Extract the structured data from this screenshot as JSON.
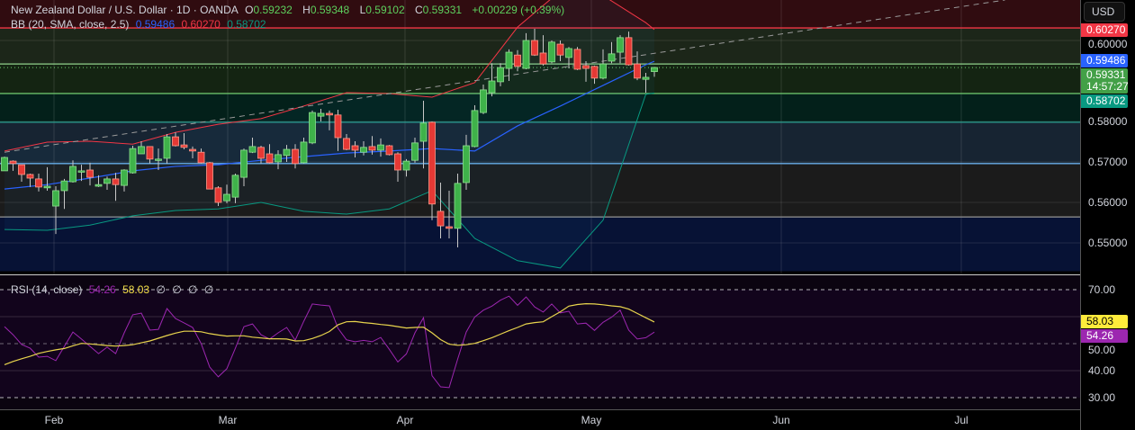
{
  "header": {
    "symbol_line": "New Zealand Dollar / U.S. Dollar · 1D · OANDA",
    "o_label": "O",
    "o": "0.59232",
    "h_label": "H",
    "h": "0.59348",
    "l_label": "L",
    "l": "0.59102",
    "c_label": "C",
    "c": "0.59331",
    "change": "+0.00229 (+0.39%)"
  },
  "bb_legend": {
    "label": "BB (20, SMA, close, 2.5)",
    "basis": "0.59486",
    "upper": "0.60270",
    "lower": "0.58702"
  },
  "rsi_legend": {
    "label": "RSI (14, close)",
    "rsi": "54.26",
    "ma": "58.03",
    "extras": [
      "∅",
      "∅",
      "∅",
      "∅"
    ]
  },
  "price_axis": {
    "currency": "USD",
    "ticks": [
      "0.60000",
      "0.58000",
      "0.57000",
      "0.56000",
      "0.55000"
    ],
    "badges": [
      {
        "value": "0.60270",
        "color": "#f23645"
      },
      {
        "value": "0.59486",
        "color": "#2962ff"
      },
      {
        "value": "0.59331",
        "color": "#43a047",
        "sub": "14:57:27"
      },
      {
        "value": "0.58702",
        "color": "#089981"
      }
    ]
  },
  "rsi_axis": {
    "ticks": [
      "70.00",
      "50.00",
      "40.00",
      "30.00"
    ],
    "badges": [
      {
        "value": "58.03",
        "color": "#ffeb3b",
        "text_color": "#000000"
      },
      {
        "value": "54.26",
        "color": "#9c27b0",
        "text_color": "#ffffff"
      }
    ]
  },
  "time_axis": {
    "labels": [
      "Feb",
      "Mar",
      "Apr",
      "May",
      "Jun",
      "Jul"
    ]
  },
  "colors": {
    "up": "#3fb24a",
    "down": "#e53935",
    "bb_basis": "#2962ff",
    "bb_upper": "#f23645",
    "bb_lower": "#089981",
    "rsi": "#9c27b0",
    "rsi_ma": "#e8d44d"
  },
  "chart_data": [
    {
      "type": "candlestick",
      "title": "New Zealand Dollar / U.S. Dollar · 1D · OANDA",
      "ylim": [
        0.543,
        0.61
      ],
      "ohlc": [
        [
          0.5678,
          0.5713,
          0.5678,
          0.5711
        ],
        [
          0.5702,
          0.5704,
          0.5678,
          0.5696
        ],
        [
          0.5693,
          0.5693,
          0.5651,
          0.5669
        ],
        [
          0.5669,
          0.5671,
          0.5638,
          0.566
        ],
        [
          0.5658,
          0.5671,
          0.5627,
          0.5638
        ],
        [
          0.5636,
          0.5687,
          0.5629,
          0.564
        ],
        [
          0.5591,
          0.564,
          0.5522,
          0.5629
        ],
        [
          0.5629,
          0.5658,
          0.5584,
          0.5653
        ],
        [
          0.5651,
          0.5704,
          0.5649,
          0.5689
        ],
        [
          0.5676,
          0.5693,
          0.5653,
          0.5678
        ],
        [
          0.568,
          0.5698,
          0.5642,
          0.5662
        ],
        [
          0.564,
          0.5667,
          0.5638,
          0.5644
        ],
        [
          0.5647,
          0.5664,
          0.5631,
          0.5658
        ],
        [
          0.5658,
          0.5673,
          0.5604,
          0.5644
        ],
        [
          0.5642,
          0.5682,
          0.5627,
          0.568
        ],
        [
          0.5673,
          0.574,
          0.5671,
          0.5733
        ],
        [
          0.572,
          0.5751,
          0.572,
          0.5738
        ],
        [
          0.5738,
          0.5738,
          0.5696,
          0.5707
        ],
        [
          0.5707,
          0.5733,
          0.568,
          0.5707
        ],
        [
          0.5709,
          0.5769,
          0.5696,
          0.5762
        ],
        [
          0.5762,
          0.5773,
          0.5738,
          0.574
        ],
        [
          0.5742,
          0.5771,
          0.5731,
          0.5736
        ],
        [
          0.5731,
          0.5738,
          0.5709,
          0.5727
        ],
        [
          0.5724,
          0.5733,
          0.5696,
          0.5698
        ],
        [
          0.5698,
          0.57,
          0.5633,
          0.5633
        ],
        [
          0.5636,
          0.564,
          0.5591,
          0.56
        ],
        [
          0.5604,
          0.5644,
          0.5598,
          0.562
        ],
        [
          0.5613,
          0.5671,
          0.5598,
          0.5667
        ],
        [
          0.5662,
          0.5733,
          0.564,
          0.5729
        ],
        [
          0.5724,
          0.576,
          0.5722,
          0.5738
        ],
        [
          0.5736,
          0.574,
          0.5696,
          0.5709
        ],
        [
          0.572,
          0.5744,
          0.5696,
          0.5698
        ],
        [
          0.57,
          0.5729,
          0.5682,
          0.5718
        ],
        [
          0.5716,
          0.5742,
          0.57,
          0.5731
        ],
        [
          0.5731,
          0.5744,
          0.5684,
          0.5696
        ],
        [
          0.5698,
          0.576,
          0.5696,
          0.5749
        ],
        [
          0.5747,
          0.5827,
          0.5744,
          0.5822
        ],
        [
          0.5813,
          0.5831,
          0.58,
          0.582
        ],
        [
          0.582,
          0.5827,
          0.5778,
          0.5816
        ],
        [
          0.5816,
          0.5829,
          0.5727,
          0.576
        ],
        [
          0.5758,
          0.5769,
          0.5729,
          0.5731
        ],
        [
          0.574,
          0.5751,
          0.5711,
          0.5729
        ],
        [
          0.5724,
          0.5751,
          0.5716,
          0.5736
        ],
        [
          0.5738,
          0.5764,
          0.5718,
          0.5729
        ],
        [
          0.5729,
          0.5758,
          0.5713,
          0.5742
        ],
        [
          0.574,
          0.5742,
          0.5716,
          0.5718
        ],
        [
          0.572,
          0.5724,
          0.5651,
          0.568
        ],
        [
          0.568,
          0.5707,
          0.5664,
          0.5702
        ],
        [
          0.5704,
          0.576,
          0.5698,
          0.5747
        ],
        [
          0.5751,
          0.5851,
          0.5684,
          0.5796
        ],
        [
          0.5798,
          0.58,
          0.5556,
          0.5596
        ],
        [
          0.5578,
          0.5649,
          0.5511,
          0.5542
        ],
        [
          0.554,
          0.5629,
          0.5511,
          0.5536
        ],
        [
          0.5536,
          0.5671,
          0.5489,
          0.5647
        ],
        [
          0.5649,
          0.5767,
          0.5631,
          0.574
        ],
        [
          0.5738,
          0.584,
          0.5736,
          0.5827
        ],
        [
          0.5822,
          0.5891,
          0.5818,
          0.5878
        ],
        [
          0.5871,
          0.5944,
          0.5862,
          0.59
        ],
        [
          0.5898,
          0.5944,
          0.5887,
          0.5933
        ],
        [
          0.5931,
          0.5978,
          0.59,
          0.5971
        ],
        [
          0.5964,
          0.5976,
          0.5924,
          0.5936
        ],
        [
          0.5931,
          0.6018,
          0.5929,
          0.6
        ],
        [
          0.6,
          0.6029,
          0.5962,
          0.5964
        ],
        [
          0.5969,
          0.6013,
          0.5938,
          0.5942
        ],
        [
          0.5947,
          0.6,
          0.5944,
          0.5996
        ],
        [
          0.5991,
          0.6,
          0.5949,
          0.5964
        ],
        [
          0.5958,
          0.5984,
          0.5931,
          0.598
        ],
        [
          0.5978,
          0.5984,
          0.5927,
          0.5929
        ],
        [
          0.5938,
          0.5949,
          0.5898,
          0.5931
        ],
        [
          0.5936,
          0.5938,
          0.5893,
          0.5907
        ],
        [
          0.5907,
          0.5978,
          0.5904,
          0.5942
        ],
        [
          0.5949,
          0.5996,
          0.5944,
          0.5967
        ],
        [
          0.5971,
          0.6013,
          0.5944,
          0.6007
        ],
        [
          0.6007,
          0.6022,
          0.5938,
          0.594
        ],
        [
          0.5942,
          0.5973,
          0.5902,
          0.5907
        ],
        [
          0.5904,
          0.592,
          0.5871,
          0.5909
        ],
        [
          0.59232,
          0.59348,
          0.59102,
          0.59331
        ]
      ],
      "bollinger": {
        "bars": [
          1,
          6,
          11,
          16,
          21,
          26,
          31,
          36,
          41,
          46,
          51,
          56,
          61,
          66,
          71,
          76,
          77
        ],
        "upper": [
          0.5727,
          0.5749,
          0.5751,
          0.5744,
          0.5773,
          0.5793,
          0.5807,
          0.5838,
          0.5871,
          0.5869,
          0.586,
          0.5896,
          0.6033,
          0.6122,
          0.6111,
          0.6044,
          0.6027
        ],
        "basis": [
          0.5633,
          0.5644,
          0.566,
          0.5678,
          0.5689,
          0.5693,
          0.5704,
          0.5713,
          0.5722,
          0.5727,
          0.5733,
          0.5727,
          0.5789,
          0.5838,
          0.5889,
          0.594,
          0.59486
        ],
        "lower": [
          0.5533,
          0.5531,
          0.5544,
          0.5567,
          0.558,
          0.5584,
          0.56,
          0.5578,
          0.5571,
          0.5584,
          0.5629,
          0.5511,
          0.5456,
          0.5438,
          0.5556,
          0.5867,
          0.58702
        ]
      },
      "price_zones": [
        {
          "top": 0.61,
          "bottom": 0.6031,
          "color": "#300c10"
        },
        {
          "top": 0.6031,
          "bottom": 0.5942,
          "color": "#1c2619"
        },
        {
          "top": 0.5942,
          "bottom": 0.5869,
          "color": "#142412"
        },
        {
          "top": 0.5869,
          "bottom": 0.5798,
          "color": "#03201a"
        },
        {
          "top": 0.5798,
          "bottom": 0.5696,
          "color": "#172432"
        },
        {
          "top": 0.5696,
          "bottom": 0.5564,
          "color": "#1b1b1b"
        },
        {
          "top": 0.5564,
          "bottom": 0.543,
          "color": "#071235"
        }
      ],
      "horizontal_levels": [
        {
          "price": 0.6031,
          "color": "#f23645"
        },
        {
          "price": 0.5942,
          "color": "#90d08a"
        },
        {
          "price": 0.5869,
          "color": "#6abf69"
        },
        {
          "price": 0.5798,
          "color": "#2a9d8f"
        },
        {
          "price": 0.5696,
          "color": "#6aaee8"
        },
        {
          "price": 0.5564,
          "color": "#8a8a8a"
        }
      ],
      "trendline": {
        "from": [
          1,
          0.5724
        ],
        "to": [
          118,
          0.61
        ]
      },
      "last_price": 0.59331
    },
    {
      "type": "line",
      "title": "RSI (14, close)",
      "ylim": [
        22,
        75
      ],
      "levels": {
        "upper": 70,
        "middle": 50,
        "lower": 30
      },
      "series": [
        {
          "name": "RSI",
          "values": [
            56.3,
            53.3,
            49.7,
            48.3,
            45,
            45.3,
            43.7,
            49,
            54.3,
            51.7,
            49,
            46.3,
            48.7,
            46.3,
            54,
            60.7,
            61.3,
            55,
            55.3,
            63,
            59.3,
            57.7,
            56,
            50,
            41.3,
            37.7,
            40.7,
            48.3,
            56.3,
            57.3,
            53.3,
            51.7,
            54,
            56,
            51.3,
            58.3,
            64.7,
            64.3,
            64,
            55.7,
            51.4,
            50.7,
            51.2,
            50.7,
            52.3,
            47.9,
            43.2,
            46.2,
            54,
            59.6,
            38.1,
            34,
            33.7,
            44.3,
            54.3,
            59.9,
            62.4,
            63.9,
            66.1,
            67.6,
            64.2,
            67.3,
            63.6,
            61.7,
            64.7,
            61.4,
            62,
            57.3,
            57.6,
            54.9,
            57.9,
            59.8,
            62.4,
            55,
            51.7,
            52.2,
            54.26
          ]
        },
        {
          "name": "MA",
          "values": [
            42.2,
            43.4,
            44.4,
            45.3,
            46.4,
            47.1,
            47.7,
            48.2,
            49.2,
            50.1,
            49.9,
            49.6,
            49.3,
            49.1,
            49.3,
            49.6,
            50.3,
            51,
            52,
            53,
            53.9,
            54.6,
            54.6,
            54.4,
            53.7,
            53.2,
            52.8,
            52.9,
            52.9,
            52.4,
            52.1,
            51.8,
            51.8,
            51.7,
            51,
            51.1,
            51.9,
            53,
            54.5,
            57,
            58.1,
            58.2,
            57.8,
            57.5,
            57.1,
            56.8,
            56.3,
            55.8,
            56,
            56.1,
            54,
            51.5,
            49.8,
            49.4,
            49.6,
            50.1,
            51.1,
            52.2,
            53.5,
            54.8,
            56,
            57.3,
            57.8,
            58.1,
            60,
            61.8,
            63.9,
            64.5,
            64.8,
            64.7,
            64.4,
            64,
            63.7,
            62.8,
            61.2,
            59.6,
            58.03
          ]
        }
      ]
    }
  ]
}
